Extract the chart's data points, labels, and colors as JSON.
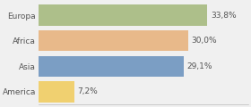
{
  "categories": [
    "Europa",
    "Africa",
    "Asia",
    "America"
  ],
  "values": [
    33.8,
    30.0,
    29.1,
    7.2
  ],
  "labels": [
    "33,8%",
    "30,0%",
    "29,1%",
    "7,2%"
  ],
  "bar_colors": [
    "#adbf8a",
    "#e8b98a",
    "#7b9ec4",
    "#f0d070"
  ],
  "background_color": "#f0f0f0",
  "xlim": [
    0,
    42
  ],
  "bar_height": 0.82,
  "label_fontsize": 6.5,
  "cat_fontsize": 6.5,
  "text_color": "#555555"
}
